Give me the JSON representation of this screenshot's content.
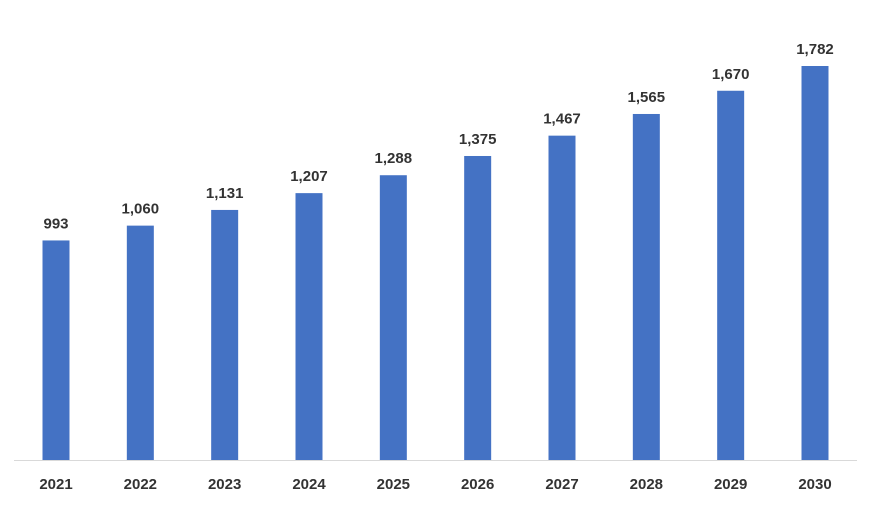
{
  "chart_data": {
    "type": "bar",
    "categories": [
      "2021",
      "2022",
      "2023",
      "2024",
      "2025",
      "2026",
      "2027",
      "2028",
      "2029",
      "2030"
    ],
    "values": [
      993,
      1060,
      1131,
      1207,
      1288,
      1375,
      1467,
      1565,
      1670,
      1782
    ],
    "value_labels": [
      "993",
      "1,060",
      "1,131",
      "1,207",
      "1,288",
      "1,375",
      "1,467",
      "1,565",
      "1,670",
      "1,782"
    ],
    "title": "",
    "xlabel": "",
    "ylabel": "",
    "ylim": [
      0,
      1782
    ],
    "grid": false,
    "legend": "none",
    "bar_color": "#4472C4",
    "axis_color": "#D9D9D9",
    "label_color": "#333333"
  }
}
